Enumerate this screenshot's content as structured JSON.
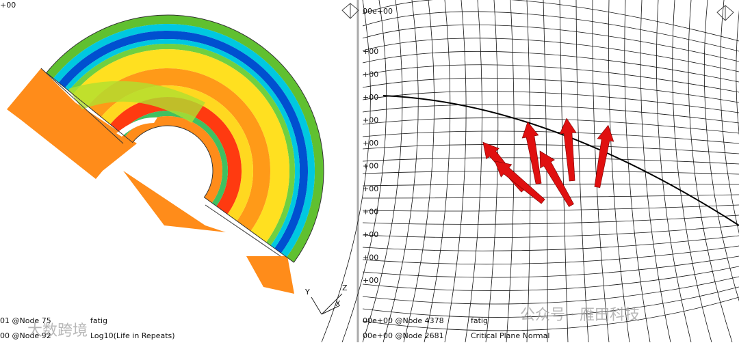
{
  "left_view": {
    "corner_label": "+00",
    "max_line": "01 @Node 75",
    "result_name": "fatig",
    "min_line": "00 @Node 92",
    "result_type": "Log10(Life in Repeats)",
    "triad": {
      "y": "Y",
      "z": "Z",
      "x": "X"
    },
    "watermark": "大数跨境"
  },
  "right_view": {
    "corner_label": "00e+00",
    "legend_labels": [
      "+00",
      "+00",
      "+00",
      "+00",
      "+00",
      "+00",
      "+00",
      "+00",
      "+00",
      "+00",
      "+00"
    ],
    "max_line": "00e+00 @Node 4378",
    "result_name": "fatig",
    "min_line": "00e+00 @Node 2681",
    "result_type": "Critical Plane Normal",
    "watermark": "公众号 · 雁田科技"
  }
}
